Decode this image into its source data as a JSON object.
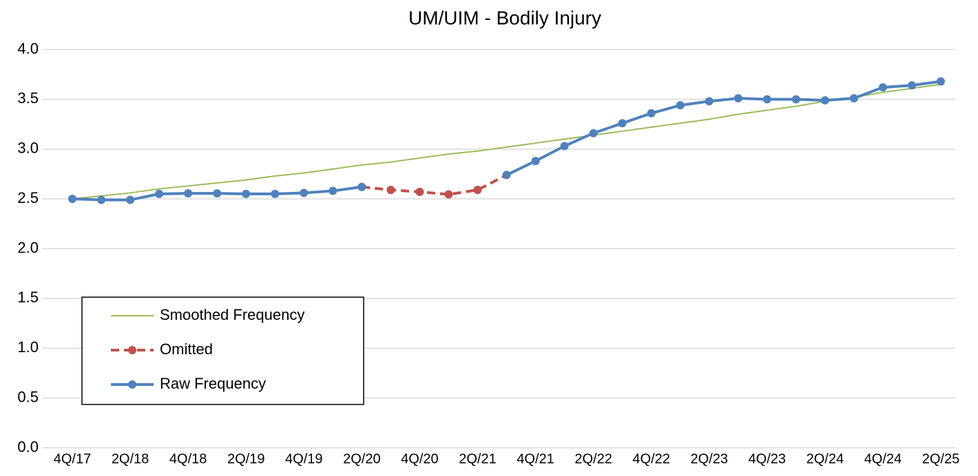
{
  "chart_data": {
    "type": "line",
    "title": "UM/UIM - Bodily Injury",
    "categories": [
      "4Q/17",
      null,
      "2Q/18",
      null,
      "4Q/18",
      null,
      "2Q/19",
      null,
      "4Q/19",
      null,
      "2Q/20",
      null,
      "4Q/20",
      null,
      "2Q/21",
      null,
      "4Q/21",
      null,
      "2Q/22",
      null,
      "4Q/22",
      null,
      "2Q/23",
      null,
      "4Q/23",
      null,
      "2Q/24",
      null,
      "4Q/24",
      null,
      "2Q/25"
    ],
    "series": [
      {
        "name": "Smoothed Frequency",
        "color": "#9bbb59",
        "markers": false,
        "dashed": false,
        "values": [
          2.5,
          2.53,
          2.56,
          2.6,
          2.63,
          2.66,
          2.69,
          2.73,
          2.76,
          2.8,
          2.84,
          2.87,
          2.91,
          2.95,
          2.98,
          3.02,
          3.06,
          3.1,
          3.14,
          3.18,
          3.22,
          3.26,
          3.3,
          3.35,
          3.39,
          3.43,
          3.48,
          3.52,
          3.57,
          3.61,
          3.65
        ]
      },
      {
        "name": "Omitted",
        "color": "#c0504d",
        "markers": true,
        "dashed": true,
        "values": [
          null,
          null,
          null,
          null,
          null,
          null,
          null,
          null,
          null,
          null,
          2.62,
          2.59,
          2.57,
          2.545,
          2.59,
          2.74,
          null,
          null,
          null,
          null,
          null,
          null,
          null,
          null,
          null,
          null,
          null,
          null,
          null,
          null,
          null
        ]
      },
      {
        "name": "Raw Frequency",
        "color": "#4f81bd",
        "markers": true,
        "dashed": false,
        "values": [
          2.5,
          2.49,
          2.49,
          2.55,
          2.555,
          2.555,
          2.55,
          2.55,
          2.56,
          2.58,
          2.62,
          null,
          null,
          null,
          null,
          2.74,
          2.88,
          3.03,
          3.16,
          3.26,
          3.36,
          3.44,
          3.48,
          3.51,
          3.5,
          3.5,
          3.49,
          3.51,
          3.62,
          3.64,
          3.68
        ]
      }
    ],
    "ylim": [
      0,
      4
    ],
    "yticks": [
      {
        "value": 0,
        "label": "0.0"
      },
      0.5,
      {
        "value": 1,
        "label": "1.0"
      },
      1.5,
      {
        "value": 2,
        "label": "2.0"
      },
      2.5,
      {
        "value": 3,
        "label": "3.0"
      },
      3.5,
      {
        "value": 4,
        "label": "4.0"
      }
    ],
    "grid": true,
    "legend": "lower left"
  }
}
